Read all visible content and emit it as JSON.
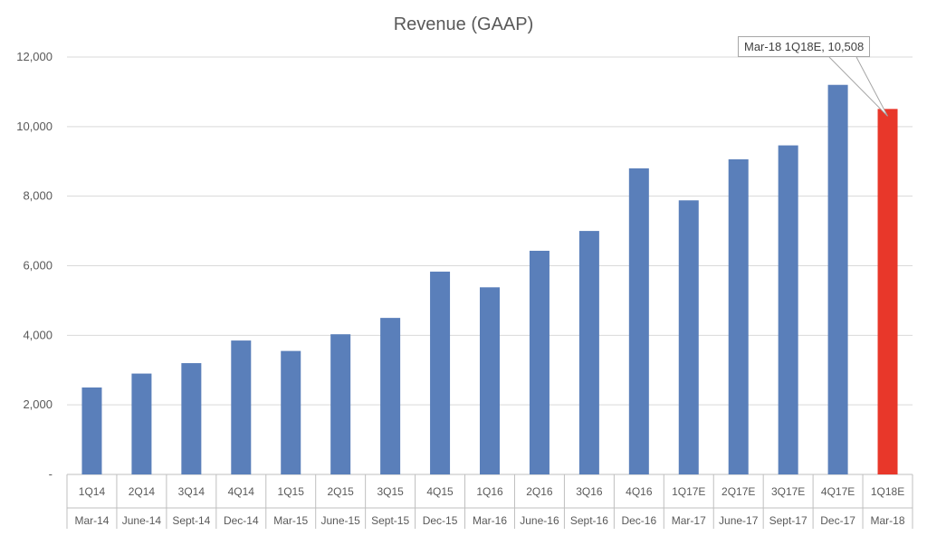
{
  "chart_data": {
    "type": "bar",
    "title": "Revenue (GAAP)",
    "categories": [
      "1Q14",
      "2Q14",
      "3Q14",
      "4Q14",
      "1Q15",
      "2Q15",
      "3Q15",
      "4Q15",
      "1Q16",
      "2Q16",
      "3Q16",
      "4Q16",
      "1Q17E",
      "2Q17E",
      "3Q17E",
      "4Q17E",
      "1Q18E"
    ],
    "subcategories": [
      "Mar-14",
      "June-14",
      "Sept-14",
      "Dec-14",
      "Mar-15",
      "June-15",
      "Sept-15",
      "Dec-15",
      "Mar-16",
      "June-16",
      "Sept-16",
      "Dec-16",
      "Mar-17",
      "June-17",
      "Sept-17",
      "Dec-17",
      "Mar-18"
    ],
    "values": [
      2500,
      2900,
      3200,
      3850,
      3550,
      4030,
      4500,
      5830,
      5380,
      6430,
      7000,
      8800,
      7880,
      9060,
      9460,
      11200,
      10508
    ],
    "ylim": [
      0,
      12000
    ],
    "yticks": [
      0,
      2000,
      4000,
      6000,
      8000,
      10000,
      12000
    ],
    "ytick_labels": [
      "-",
      "2,000",
      "4,000",
      "6,000",
      "8,000",
      "10,000",
      "12,000"
    ],
    "grid": true,
    "colors": {
      "bar": "#5a7fba",
      "highlight": "#e8372a",
      "grid": "#d9d9d9",
      "axis": "#bfbfbf"
    },
    "highlight_index": 16,
    "annotation": {
      "text": "Mar-18 1Q18E, 10,508",
      "index": 16
    }
  }
}
